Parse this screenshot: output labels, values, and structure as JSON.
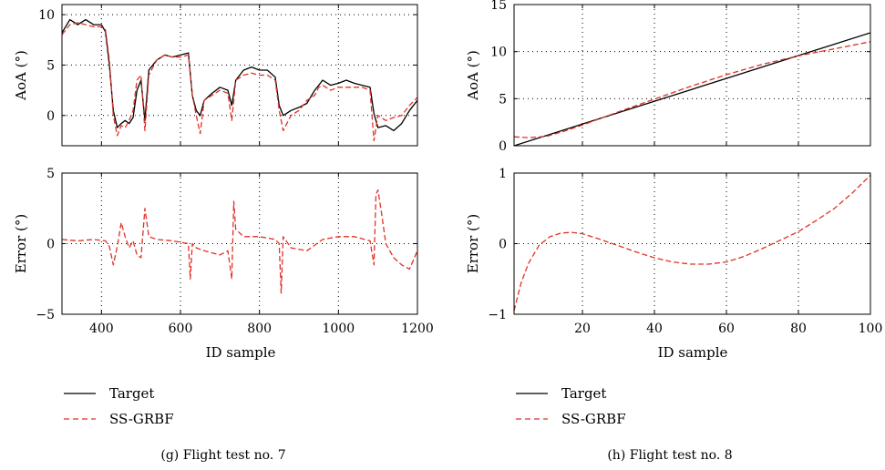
{
  "colors": {
    "target": "#000000",
    "ssgrbf": "#e03127",
    "axis": "#000000",
    "background": "#ffffff"
  },
  "panels": [
    {
      "caption": "(g) Flight test no. 7",
      "xlabel": "ID sample",
      "legend": {
        "target": "Target",
        "ssgrbf": "SS-GRBF"
      }
    },
    {
      "caption": "(h) Flight test no. 8",
      "xlabel": "ID sample",
      "legend": {
        "target": "Target",
        "ssgrbf": "SS-GRBF"
      }
    }
  ],
  "chart_data": [
    {
      "type": "line",
      "panel": "g",
      "role": "AoA",
      "ylabel": "AoA (°)",
      "xlabel": "",
      "xlim": [
        300,
        1200
      ],
      "ylim": [
        -3,
        11
      ],
      "xticks": [],
      "yticks": [
        0,
        5,
        10
      ],
      "grid": true,
      "series": [
        {
          "name": "Target",
          "style": "solid",
          "x": [
            300,
            320,
            340,
            360,
            380,
            400,
            410,
            420,
            430,
            440,
            450,
            460,
            470,
            480,
            490,
            500,
            510,
            520,
            540,
            560,
            580,
            600,
            620,
            630,
            640,
            650,
            660,
            680,
            700,
            720,
            730,
            740,
            760,
            780,
            800,
            820,
            840,
            850,
            860,
            880,
            900,
            920,
            940,
            950,
            960,
            980,
            1000,
            1020,
            1040,
            1060,
            1080,
            1090,
            1100,
            1120,
            1140,
            1160,
            1180,
            1200
          ],
          "y": [
            8.2,
            9.5,
            9.0,
            9.5,
            9.0,
            9.0,
            8.3,
            5.0,
            0.5,
            -1.2,
            -0.8,
            -0.5,
            -0.8,
            -0.2,
            2.5,
            3.5,
            -0.5,
            4.5,
            5.5,
            6.0,
            5.8,
            6.0,
            6.2,
            2.0,
            0.5,
            0.0,
            1.5,
            2.2,
            2.8,
            2.5,
            1.0,
            3.5,
            4.5,
            4.8,
            4.5,
            4.5,
            3.8,
            1.0,
            0.0,
            0.5,
            0.8,
            1.2,
            2.5,
            3.0,
            3.5,
            3.0,
            3.2,
            3.5,
            3.2,
            3.0,
            2.8,
            0.2,
            -1.2,
            -1.0,
            -1.5,
            -0.8,
            0.5,
            1.5
          ]
        },
        {
          "name": "SS-GRBF",
          "style": "dashed",
          "x": [
            300,
            320,
            340,
            360,
            380,
            400,
            410,
            420,
            430,
            440,
            450,
            460,
            470,
            480,
            490,
            500,
            510,
            520,
            540,
            560,
            580,
            600,
            620,
            630,
            640,
            650,
            660,
            680,
            700,
            720,
            730,
            740,
            760,
            780,
            800,
            820,
            840,
            850,
            860,
            880,
            900,
            920,
            940,
            950,
            960,
            980,
            1000,
            1020,
            1040,
            1060,
            1080,
            1090,
            1100,
            1120,
            1140,
            1160,
            1180,
            1200
          ],
          "y": [
            8.0,
            9.0,
            9.2,
            9.0,
            8.8,
            8.8,
            8.5,
            5.5,
            0.0,
            -2.0,
            -1.0,
            -1.2,
            -0.5,
            0.5,
            3.5,
            4.0,
            -1.5,
            4.0,
            5.5,
            6.0,
            5.8,
            5.8,
            6.0,
            2.0,
            0.0,
            -1.8,
            1.5,
            2.0,
            2.5,
            2.2,
            -0.5,
            3.5,
            4.0,
            4.2,
            4.0,
            4.0,
            3.5,
            0.5,
            -1.5,
            0.0,
            0.5,
            1.5,
            2.0,
            2.8,
            3.0,
            2.5,
            2.8,
            2.8,
            2.8,
            2.8,
            2.5,
            -2.5,
            0.0,
            -0.5,
            -0.2,
            0.0,
            1.0,
            1.8
          ]
        }
      ]
    },
    {
      "type": "line",
      "panel": "g",
      "role": "Error",
      "ylabel": "Error (°)",
      "xlabel": "ID sample",
      "xlim": [
        300,
        1200
      ],
      "ylim": [
        -5,
        5
      ],
      "xticks": [
        400,
        600,
        800,
        1000,
        1200
      ],
      "yticks": [
        -5,
        0,
        5
      ],
      "grid": true,
      "series": [
        {
          "name": "SS-GRBF",
          "style": "dashed",
          "x": [
            300,
            340,
            380,
            410,
            420,
            430,
            440,
            450,
            460,
            470,
            480,
            490,
            500,
            510,
            520,
            540,
            580,
            620,
            625,
            630,
            640,
            660,
            700,
            720,
            730,
            735,
            740,
            760,
            800,
            840,
            850,
            855,
            860,
            880,
            920,
            960,
            1000,
            1040,
            1080,
            1090,
            1095,
            1100,
            1110,
            1120,
            1140,
            1160,
            1180,
            1200
          ],
          "y": [
            0.3,
            0.2,
            0.3,
            0.2,
            -0.2,
            -1.5,
            -0.2,
            1.5,
            0.5,
            -0.3,
            0.2,
            -0.8,
            -1.0,
            2.5,
            0.5,
            0.3,
            0.2,
            0.0,
            -2.5,
            0.0,
            -0.3,
            -0.5,
            -0.8,
            -0.5,
            -2.5,
            3.0,
            1.0,
            0.5,
            0.5,
            0.3,
            0.0,
            -3.5,
            0.5,
            -0.3,
            -0.5,
            0.3,
            0.5,
            0.5,
            0.2,
            -1.5,
            3.5,
            3.8,
            2.0,
            0.0,
            -1.0,
            -1.5,
            -1.8,
            -0.5
          ]
        }
      ]
    },
    {
      "type": "line",
      "panel": "h",
      "role": "AoA",
      "ylabel": "AoA (°)",
      "xlabel": "",
      "xlim": [
        1,
        100
      ],
      "ylim": [
        0,
        15
      ],
      "xticks": [],
      "yticks": [
        0,
        5,
        10,
        15
      ],
      "grid": true,
      "series": [
        {
          "name": "Target",
          "style": "solid",
          "x": [
            1,
            100
          ],
          "y": [
            0,
            12
          ]
        },
        {
          "name": "SS-GRBF",
          "style": "dashed",
          "x": [
            1,
            5,
            10,
            15,
            20,
            30,
            40,
            50,
            60,
            70,
            80,
            90,
            100
          ],
          "y": [
            0.95,
            0.85,
            1.0,
            1.55,
            2.2,
            3.6,
            4.95,
            6.3,
            7.55,
            8.65,
            9.55,
            10.3,
            11.05
          ]
        }
      ]
    },
    {
      "type": "line",
      "panel": "h",
      "role": "Error",
      "ylabel": "Error (°)",
      "xlabel": "ID sample",
      "xlim": [
        1,
        100
      ],
      "ylim": [
        -1,
        1
      ],
      "xticks": [
        20,
        40,
        60,
        80,
        100
      ],
      "yticks": [
        -1,
        0,
        1
      ],
      "grid": true,
      "series": [
        {
          "name": "SS-GRBF",
          "style": "dashed",
          "x": [
            1,
            3,
            5,
            8,
            11,
            14,
            17,
            20,
            25,
            30,
            35,
            40,
            45,
            50,
            55,
            60,
            65,
            70,
            75,
            80,
            85,
            90,
            95,
            100
          ],
          "y": [
            -0.95,
            -0.55,
            -0.28,
            -0.02,
            0.1,
            0.15,
            0.16,
            0.14,
            0.06,
            -0.03,
            -0.12,
            -0.2,
            -0.26,
            -0.29,
            -0.29,
            -0.26,
            -0.18,
            -0.07,
            0.05,
            0.17,
            0.33,
            0.5,
            0.72,
            0.97
          ]
        }
      ]
    }
  ]
}
